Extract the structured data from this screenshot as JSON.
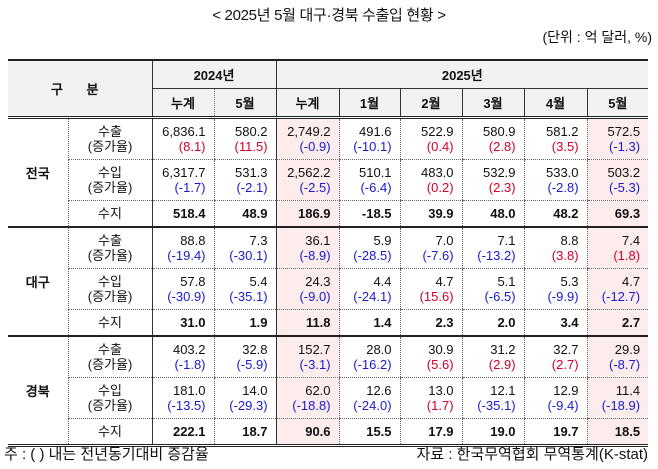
{
  "title": "< 2025년 5월 대구·경북 수출입 현황 >",
  "unit": "(단위 : 억 달러, %)",
  "header": {
    "gubun": "구 분",
    "year_2024": "2024년",
    "year_2025": "2025년",
    "columns": [
      "누계",
      "5월",
      "누계",
      "1월",
      "2월",
      "3월",
      "4월",
      "5월"
    ]
  },
  "labels": {
    "export": "수출",
    "import": "수입",
    "rate": "(증가율)",
    "balance": "수지"
  },
  "regions": [
    {
      "name": "전국",
      "export": {
        "values": [
          "6,836.1",
          "580.2",
          "2,749.2",
          "491.6",
          "522.9",
          "580.9",
          "581.2",
          "572.5"
        ],
        "rates": [
          "(8.1)",
          "(11.5)",
          "(-0.9)",
          "(-10.1)",
          "(0.4)",
          "(2.8)",
          "(3.5)",
          "(-1.3)"
        ]
      },
      "import": {
        "values": [
          "6,317.7",
          "531.3",
          "2,562.2",
          "510.1",
          "483.0",
          "532.9",
          "533.0",
          "503.2"
        ],
        "rates": [
          "(-1.7)",
          "(-2.1)",
          "(-2.5)",
          "(-6.4)",
          "(0.2)",
          "(2.3)",
          "(-2.8)",
          "(-5.3)"
        ]
      },
      "balance": [
        "518.4",
        "48.9",
        "186.9",
        "-18.5",
        "39.9",
        "48.0",
        "48.2",
        "69.3"
      ]
    },
    {
      "name": "대구",
      "export": {
        "values": [
          "88.8",
          "7.3",
          "36.1",
          "5.9",
          "7.0",
          "7.1",
          "8.8",
          "7.4"
        ],
        "rates": [
          "(-19.4)",
          "(-30.1)",
          "(-8.9)",
          "(-28.5)",
          "(-7.6)",
          "(-13.2)",
          "(3.8)",
          "(1.8)"
        ]
      },
      "import": {
        "values": [
          "57.8",
          "5.4",
          "24.3",
          "4.4",
          "4.7",
          "5.1",
          "5.3",
          "4.7"
        ],
        "rates": [
          "(-30.9)",
          "(-35.1)",
          "(-9.0)",
          "(-24.1)",
          "(15.6)",
          "(-6.5)",
          "(-9.9)",
          "(-12.7)"
        ]
      },
      "balance": [
        "31.0",
        "1.9",
        "11.8",
        "1.4",
        "2.3",
        "2.0",
        "3.4",
        "2.7"
      ]
    },
    {
      "name": "경북",
      "export": {
        "values": [
          "403.2",
          "32.8",
          "152.7",
          "28.0",
          "30.9",
          "31.2",
          "32.7",
          "29.9"
        ],
        "rates": [
          "(-1.8)",
          "(-5.9)",
          "(-3.1)",
          "(-16.2)",
          "(5.6)",
          "(2.9)",
          "(2.7)",
          "(-8.7)"
        ]
      },
      "import": {
        "values": [
          "181.0",
          "14.0",
          "62.0",
          "12.6",
          "13.0",
          "12.1",
          "12.9",
          "11.4"
        ],
        "rates": [
          "(-13.5)",
          "(-29.3)",
          "(-18.8)",
          "(-24.0)",
          "(1.7)",
          "(-35.1)",
          "(-9.4)",
          "(-18.9)"
        ]
      },
      "balance": [
        "222.1",
        "18.7",
        "90.6",
        "15.5",
        "17.9",
        "19.0",
        "19.7",
        "18.5"
      ]
    }
  ],
  "colors": {
    "positive_rate": "#d4002a",
    "negative_rate": "#1a1ad0",
    "highlight_bg": "#fcecec",
    "header_bg": "#f2f2f2"
  },
  "footnote": "주 : (  ) 내는 전년동기대비 증감율",
  "source": "자료 : 한국무역협회 무역통계(K-stat)"
}
